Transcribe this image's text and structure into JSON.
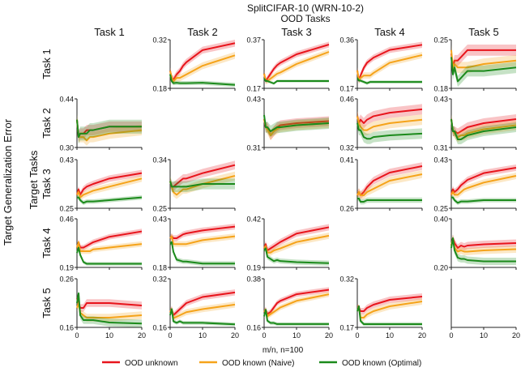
{
  "chart_data": {
    "type": "line",
    "title": "SplitCIFAR-10 (WRN-10-2)",
    "subtitle": "OOD Tasks",
    "row_axis_label": "Target Tasks",
    "ylabel": "Target Generalization Error",
    "xlabel": "m/n, n=100",
    "x_ticks": [
      "0",
      "10",
      "20"
    ],
    "xlim": [
      0,
      20
    ],
    "column_titles": [
      "Task 1",
      "Task 2",
      "Task 3",
      "Task 4",
      "Task 5"
    ],
    "row_titles": [
      "Task 1",
      "Task 2",
      "Task 3",
      "Task 4",
      "Task 5"
    ],
    "x": [
      0,
      0.5,
      1,
      2,
      3,
      4,
      5,
      10,
      20
    ],
    "legend": [
      {
        "name": "OOD unknown",
        "color": "#e8141c"
      },
      {
        "name": "OOD known (Naive)",
        "color": "#f5a31a"
      },
      {
        "name": "OOD known (Optimal)",
        "color": "#1b8a1b"
      }
    ],
    "panels": [
      {
        "row": 0,
        "col": 1,
        "ylim": [
          0.18,
          0.32
        ],
        "ytick_labels": [
          "0.18",
          "0.32"
        ],
        "series": [
          [
            0.23,
            0.21,
            0.205,
            0.22,
            0.23,
            0.245,
            0.255,
            0.29,
            0.31
          ],
          [
            0.23,
            0.21,
            0.2,
            0.21,
            0.21,
            0.215,
            0.22,
            0.245,
            0.275
          ],
          [
            0.22,
            0.2,
            0.195,
            0.196,
            0.195,
            0.195,
            0.195,
            0.196,
            0.19
          ]
        ],
        "band": [
          0.01,
          0.01,
          0.006
        ]
      },
      {
        "row": 0,
        "col": 2,
        "ylim": [
          0.17,
          0.37
        ],
        "ytick_labels": [
          "0.37",
          "0.17"
        ],
        "series": [
          [
            0.23,
            0.2,
            0.21,
            0.23,
            0.25,
            0.265,
            0.275,
            0.31,
            0.35
          ],
          [
            0.23,
            0.2,
            0.2,
            0.21,
            0.22,
            0.23,
            0.235,
            0.27,
            0.32
          ],
          [
            0.21,
            0.2,
            0.2,
            0.195,
            0.19,
            0.2,
            0.2,
            0.2,
            0.2
          ]
        ],
        "band": [
          0.012,
          0.012,
          0.006
        ]
      },
      {
        "row": 0,
        "col": 3,
        "ylim": [
          0.17,
          0.36
        ],
        "ytick_labels": [
          "0.36",
          "0.17"
        ],
        "series": [
          [
            0.24,
            0.2,
            0.22,
            0.25,
            0.27,
            0.28,
            0.29,
            0.32,
            0.34
          ],
          [
            0.24,
            0.2,
            0.21,
            0.22,
            0.22,
            0.22,
            0.23,
            0.27,
            0.3
          ],
          [
            0.21,
            0.2,
            0.2,
            0.195,
            0.19,
            0.195,
            0.195,
            0.195,
            0.195
          ]
        ],
        "band": [
          0.012,
          0.012,
          0.006
        ]
      },
      {
        "row": 0,
        "col": 4,
        "ylim": [
          0.18,
          0.25
        ],
        "ytick_labels": [
          "0.25",
          "0.18"
        ],
        "series": [
          [
            0.23,
            0.21,
            0.22,
            0.22,
            0.225,
            0.23,
            0.235,
            0.235,
            0.235
          ],
          [
            0.235,
            0.21,
            0.215,
            0.21,
            0.21,
            0.21,
            0.21,
            0.215,
            0.22
          ],
          [
            0.225,
            0.2,
            0.21,
            0.19,
            0.195,
            0.2,
            0.205,
            0.205,
            0.21
          ]
        ],
        "band": [
          0.008,
          0.008,
          0.008
        ]
      },
      {
        "row": 1,
        "col": 0,
        "ylim": [
          0.3,
          0.44
        ],
        "ytick_labels": [
          "0.44",
          "0.30"
        ],
        "series": [
          [
            0.38,
            0.33,
            0.34,
            0.34,
            0.35,
            0.35,
            0.35,
            0.36,
            0.36
          ],
          [
            0.38,
            0.33,
            0.33,
            0.33,
            0.32,
            0.33,
            0.33,
            0.34,
            0.35
          ],
          [
            0.38,
            0.33,
            0.34,
            0.34,
            0.34,
            0.35,
            0.35,
            0.36,
            0.36
          ]
        ],
        "band": [
          0.015,
          0.015,
          0.02
        ]
      },
      {
        "row": 1,
        "col": 2,
        "ylim": [
          0.31,
          0.43
        ],
        "ytick_labels": [
          "0.43",
          "0.31"
        ],
        "series": [
          [
            0.38,
            0.36,
            0.36,
            0.34,
            0.35,
            0.36,
            0.365,
            0.37,
            0.375
          ],
          [
            0.38,
            0.36,
            0.355,
            0.34,
            0.35,
            0.355,
            0.36,
            0.365,
            0.37
          ],
          [
            0.39,
            0.36,
            0.36,
            0.35,
            0.355,
            0.36,
            0.36,
            0.365,
            0.37
          ]
        ],
        "band": [
          0.012,
          0.012,
          0.014
        ]
      },
      {
        "row": 1,
        "col": 3,
        "ylim": [
          0.32,
          0.46
        ],
        "ytick_labels": [
          "0.46",
          "0.32"
        ],
        "series": [
          [
            0.41,
            0.39,
            0.4,
            0.39,
            0.4,
            0.405,
            0.41,
            0.42,
            0.43
          ],
          [
            0.41,
            0.39,
            0.38,
            0.37,
            0.37,
            0.375,
            0.38,
            0.39,
            0.4
          ],
          [
            0.39,
            0.37,
            0.37,
            0.35,
            0.345,
            0.345,
            0.35,
            0.355,
            0.36
          ]
        ],
        "band": [
          0.015,
          0.015,
          0.015
        ]
      },
      {
        "row": 1,
        "col": 4,
        "ylim": [
          0.31,
          0.43
        ],
        "ytick_labels": [
          "0.43",
          "0.31"
        ],
        "series": [
          [
            0.38,
            0.35,
            0.35,
            0.345,
            0.35,
            0.355,
            0.36,
            0.37,
            0.38
          ],
          [
            0.38,
            0.35,
            0.345,
            0.335,
            0.34,
            0.34,
            0.345,
            0.355,
            0.365
          ],
          [
            0.38,
            0.35,
            0.35,
            0.33,
            0.33,
            0.335,
            0.34,
            0.35,
            0.36
          ]
        ],
        "band": [
          0.012,
          0.012,
          0.012
        ]
      },
      {
        "row": 2,
        "col": 0,
        "ylim": [
          0.25,
          0.43
        ],
        "ytick_labels": [
          "0.43",
          "0.25"
        ],
        "series": [
          [
            0.3,
            0.32,
            0.3,
            0.32,
            0.33,
            0.335,
            0.34,
            0.36,
            0.38
          ],
          [
            0.3,
            0.31,
            0.29,
            0.3,
            0.305,
            0.31,
            0.315,
            0.33,
            0.36
          ],
          [
            0.29,
            0.29,
            0.28,
            0.27,
            0.275,
            0.275,
            0.275,
            0.28,
            0.29
          ]
        ],
        "band": [
          0.012,
          0.012,
          0.008
        ]
      },
      {
        "row": 2,
        "col": 1,
        "ylim": [
          0.25,
          0.34
        ],
        "ytick_labels": [
          "0.34",
          "0.25"
        ],
        "series": [
          [
            0.3,
            0.29,
            0.29,
            0.295,
            0.3,
            0.305,
            0.305,
            0.315,
            0.33
          ],
          [
            0.3,
            0.29,
            0.28,
            0.275,
            0.28,
            0.285,
            0.285,
            0.295,
            0.31
          ],
          [
            0.3,
            0.29,
            0.29,
            0.29,
            0.29,
            0.29,
            0.29,
            0.295,
            0.295
          ]
        ],
        "band": [
          0.008,
          0.008,
          0.01
        ]
      },
      {
        "row": 2,
        "col": 3,
        "ylim": [
          0.26,
          0.41
        ],
        "ytick_labels": [
          "0.41",
          "0.26"
        ],
        "series": [
          [
            0.3,
            0.31,
            0.3,
            0.31,
            0.325,
            0.335,
            0.345,
            0.37,
            0.39
          ],
          [
            0.3,
            0.31,
            0.3,
            0.3,
            0.31,
            0.315,
            0.32,
            0.345,
            0.365
          ],
          [
            0.29,
            0.29,
            0.28,
            0.28,
            0.285,
            0.285,
            0.285,
            0.285,
            0.285
          ]
        ],
        "band": [
          0.012,
          0.012,
          0.008
        ]
      },
      {
        "row": 2,
        "col": 4,
        "ylim": [
          0.25,
          0.43
        ],
        "ytick_labels": [
          "0.43",
          "0.25"
        ],
        "series": [
          [
            0.3,
            0.32,
            0.31,
            0.32,
            0.335,
            0.345,
            0.355,
            0.38,
            0.4
          ],
          [
            0.3,
            0.31,
            0.3,
            0.3,
            0.31,
            0.32,
            0.325,
            0.345,
            0.37
          ],
          [
            0.29,
            0.29,
            0.28,
            0.27,
            0.275,
            0.275,
            0.275,
            0.28,
            0.28
          ]
        ],
        "band": [
          0.012,
          0.012,
          0.008
        ]
      },
      {
        "row": 3,
        "col": 0,
        "ylim": [
          0.19,
          0.46
        ],
        "ytick_labels": [
          "0.46",
          "0.19"
        ],
        "series": [
          [
            0.3,
            0.33,
            0.3,
            0.3,
            0.31,
            0.32,
            0.33,
            0.36,
            0.39
          ],
          [
            0.3,
            0.33,
            0.28,
            0.28,
            0.28,
            0.28,
            0.29,
            0.3,
            0.32
          ],
          [
            0.27,
            0.3,
            0.26,
            0.22,
            0.21,
            0.21,
            0.21,
            0.21,
            0.21
          ]
        ],
        "band": [
          0.015,
          0.015,
          0.01
        ]
      },
      {
        "row": 3,
        "col": 1,
        "ylim": [
          0.18,
          0.43
        ],
        "ytick_labels": [
          "0.43",
          "0.18"
        ],
        "series": [
          [
            0.33,
            0.34,
            0.33,
            0.33,
            0.34,
            0.35,
            0.355,
            0.37,
            0.39
          ],
          [
            0.33,
            0.34,
            0.3,
            0.3,
            0.3,
            0.3,
            0.3,
            0.32,
            0.34
          ],
          [
            0.3,
            0.31,
            0.26,
            0.22,
            0.215,
            0.21,
            0.21,
            0.2,
            0.2
          ]
        ],
        "band": [
          0.015,
          0.015,
          0.012
        ]
      },
      {
        "row": 3,
        "col": 2,
        "ylim": [
          0.19,
          0.42
        ],
        "ytick_labels": [
          "0.42",
          "0.19"
        ],
        "series": [
          [
            0.28,
            0.3,
            0.27,
            0.28,
            0.29,
            0.3,
            0.31,
            0.35,
            0.38
          ],
          [
            0.28,
            0.29,
            0.26,
            0.26,
            0.27,
            0.275,
            0.28,
            0.31,
            0.34
          ],
          [
            0.27,
            0.28,
            0.24,
            0.23,
            0.22,
            0.225,
            0.22,
            0.215,
            0.21
          ]
        ],
        "band": [
          0.015,
          0.015,
          0.012
        ]
      },
      {
        "row": 3,
        "col": 4,
        "ylim": [
          0.2,
          0.4
        ],
        "ytick_labels": [
          "0.40",
          "0.20"
        ],
        "series": [
          [
            0.29,
            0.32,
            0.3,
            0.28,
            0.29,
            0.285,
            0.29,
            0.295,
            0.3
          ],
          [
            0.29,
            0.32,
            0.28,
            0.265,
            0.27,
            0.265,
            0.265,
            0.27,
            0.275
          ],
          [
            0.28,
            0.32,
            0.27,
            0.24,
            0.235,
            0.235,
            0.23,
            0.225,
            0.225
          ]
        ],
        "band": [
          0.015,
          0.015,
          0.015
        ]
      },
      {
        "row": 4,
        "col": 0,
        "ylim": [
          0.16,
          0.26
        ],
        "ytick_labels": [
          "0.26",
          "0.16"
        ],
        "series": [
          [
            0.22,
            0.21,
            0.2,
            0.2,
            0.21,
            0.21,
            0.21,
            0.21,
            0.205
          ],
          [
            0.2,
            0.21,
            0.19,
            0.185,
            0.18,
            0.18,
            0.18,
            0.18,
            0.185
          ],
          [
            0.21,
            0.23,
            0.185,
            0.175,
            0.175,
            0.175,
            0.175,
            0.17,
            0.168
          ]
        ],
        "band": [
          0.008,
          0.008,
          0.008
        ]
      },
      {
        "row": 4,
        "col": 1,
        "ylim": [
          0.16,
          0.32
        ],
        "ytick_labels": [
          "0.32",
          "0.16"
        ],
        "series": [
          [
            0.21,
            0.22,
            0.2,
            0.21,
            0.22,
            0.23,
            0.24,
            0.26,
            0.275
          ],
          [
            0.21,
            0.22,
            0.19,
            0.195,
            0.2,
            0.205,
            0.21,
            0.22,
            0.235
          ],
          [
            0.2,
            0.22,
            0.18,
            0.175,
            0.18,
            0.175,
            0.175,
            0.175,
            0.17
          ]
        ],
        "band": [
          0.01,
          0.01,
          0.006
        ]
      },
      {
        "row": 4,
        "col": 2,
        "ylim": [
          0.16,
          0.38
        ],
        "ytick_labels": [
          "0.38",
          "0.16"
        ],
        "series": [
          [
            0.23,
            0.24,
            0.22,
            0.23,
            0.25,
            0.27,
            0.28,
            0.31,
            0.33
          ],
          [
            0.23,
            0.24,
            0.21,
            0.22,
            0.23,
            0.24,
            0.25,
            0.28,
            0.31
          ],
          [
            0.21,
            0.24,
            0.19,
            0.18,
            0.18,
            0.175,
            0.175,
            0.175,
            0.175
          ]
        ],
        "band": [
          0.012,
          0.012,
          0.008
        ]
      },
      {
        "row": 4,
        "col": 3,
        "ylim": [
          0.17,
          0.32
        ],
        "ytick_labels": [
          "0.32",
          "0.17"
        ],
        "series": [
          [
            0.23,
            0.23,
            0.22,
            0.22,
            0.23,
            0.235,
            0.24,
            0.255,
            0.265
          ],
          [
            0.23,
            0.23,
            0.2,
            0.2,
            0.21,
            0.215,
            0.22,
            0.235,
            0.25
          ],
          [
            0.22,
            0.235,
            0.19,
            0.18,
            0.18,
            0.18,
            0.18,
            0.18,
            0.18
          ]
        ],
        "band": [
          0.01,
          0.01,
          0.006
        ]
      }
    ]
  }
}
